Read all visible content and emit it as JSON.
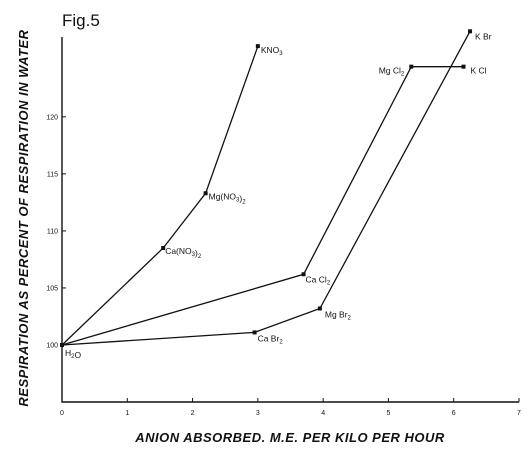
{
  "chart_data": {
    "type": "line",
    "title": "Fig.5",
    "xlabel": "ANION ABSORBED. M.E. PER KILO PER HOUR",
    "ylabel": "RESPIRATION AS PERCENT OF RESPIRATION IN WATER",
    "xlim": [
      0,
      7
    ],
    "ylim": [
      95,
      127
    ],
    "xticks": [
      "0",
      "1",
      "2",
      "3",
      "4",
      "5",
      "6",
      "7"
    ],
    "yticks": [
      "100",
      "105",
      "110",
      "115",
      "120"
    ],
    "grid": false,
    "points": [
      {
        "id": "H2O",
        "x": 0,
        "y": 100,
        "label": "H",
        "sub": "2",
        "tail": "O"
      },
      {
        "id": "CaNO3",
        "x": 1.55,
        "y": 108.5,
        "label": "Ca(NO",
        "sub": "3",
        "tail": ")",
        "sub2": "2"
      },
      {
        "id": "MgNO3",
        "x": 2.2,
        "y": 113.3,
        "label": "Mg(NO",
        "sub": "3",
        "tail": ")",
        "sub2": "2"
      },
      {
        "id": "KNO3",
        "x": 3.0,
        "y": 126.2,
        "label": "KNO",
        "sub": "3"
      },
      {
        "id": "CaCl2",
        "x": 3.7,
        "y": 106.2,
        "label": "Ca Cl",
        "sub": "2"
      },
      {
        "id": "MgCl2",
        "x": 5.35,
        "y": 124.4,
        "label": "Mg Cl",
        "sub": "2"
      },
      {
        "id": "KCl",
        "x": 6.15,
        "y": 124.4,
        "label": "K Cl"
      },
      {
        "id": "CaBr2",
        "x": 2.95,
        "y": 101.1,
        "label": "Ca Br",
        "sub": "2"
      },
      {
        "id": "MgBr2",
        "x": 3.95,
        "y": 103.2,
        "label": "Mg Br",
        "sub": "2"
      },
      {
        "id": "KBr",
        "x": 6.25,
        "y": 127.5,
        "label": "K Br"
      }
    ],
    "series": [
      {
        "points": [
          "H2O",
          "CaNO3",
          "MgNO3",
          "KNO3"
        ]
      },
      {
        "points": [
          "H2O",
          "CaCl2",
          "MgCl2",
          "KCl"
        ]
      },
      {
        "points": [
          "H2O",
          "CaBr2",
          "MgBr2",
          "KBr"
        ]
      }
    ]
  }
}
